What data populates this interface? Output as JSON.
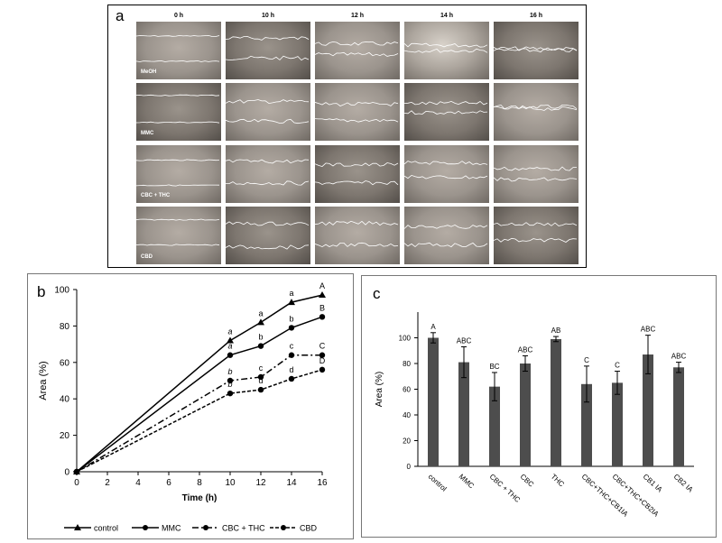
{
  "panel_a": {
    "letter": "a",
    "time_labels": [
      "0 h",
      "10 h",
      "12 h",
      "14 h",
      "16 h"
    ],
    "row_labels": [
      "MeOH",
      "MMC",
      "CBC + THC",
      "CBD"
    ]
  },
  "panel_b": {
    "letter": "b"
  },
  "panel_c": {
    "letter": "c"
  },
  "chart_data": [
    {
      "type": "line",
      "xlabel": "Time (h)",
      "ylabel": "Area (%)",
      "xlim": [
        0,
        16
      ],
      "ylim": [
        0,
        100
      ],
      "xticks": [
        0,
        2,
        4,
        6,
        8,
        10,
        12,
        14,
        16
      ],
      "yticks": [
        0,
        20,
        40,
        60,
        80,
        100
      ],
      "x": [
        0,
        10,
        12,
        14,
        16
      ],
      "grid": false,
      "legend_position": "bottom",
      "series": [
        {
          "name": "control",
          "values": [
            0,
            72,
            82,
            93,
            97
          ],
          "letters": [
            "",
            "a",
            "a",
            "a",
            "A"
          ],
          "marker": "triangle",
          "line": "solid"
        },
        {
          "name": "MMC",
          "values": [
            0,
            64,
            69,
            79,
            85
          ],
          "letters": [
            "",
            "a",
            "b",
            "b",
            "B"
          ],
          "marker": "circle",
          "line": "solid"
        },
        {
          "name": "CBC + THC",
          "values": [
            0,
            50,
            52,
            64,
            64
          ],
          "letters": [
            "",
            "b",
            "c",
            "c",
            "C"
          ],
          "marker": "circle",
          "line": "dashdot"
        },
        {
          "name": "CBD",
          "values": [
            0,
            43,
            45,
            51,
            56
          ],
          "letters": [
            "",
            "b",
            "d",
            "d",
            "D"
          ],
          "marker": "circle",
          "line": "dashed"
        }
      ]
    },
    {
      "type": "bar",
      "ylabel": "Area (%)",
      "ylim": [
        0,
        120
      ],
      "yticks": [
        0,
        20,
        40,
        60,
        80,
        100
      ],
      "grid": false,
      "categories": [
        "control",
        "MMC",
        "CBC + THC",
        "CBC",
        "THC",
        "CBC+THC+CB1IA",
        "CBC+THC+CB2IA",
        "CB1 IA",
        "CB2 IA"
      ],
      "values": [
        100,
        81,
        62,
        80,
        99,
        64,
        65,
        87,
        77
      ],
      "errors": [
        4,
        12,
        11,
        6,
        2,
        14,
        9,
        15,
        4
      ],
      "letters": [
        "A",
        "ABC",
        "BC",
        "ABC",
        "AB",
        "C",
        "C",
        "ABC",
        "ABC"
      ],
      "bar_color": "#4d4d4d"
    }
  ]
}
